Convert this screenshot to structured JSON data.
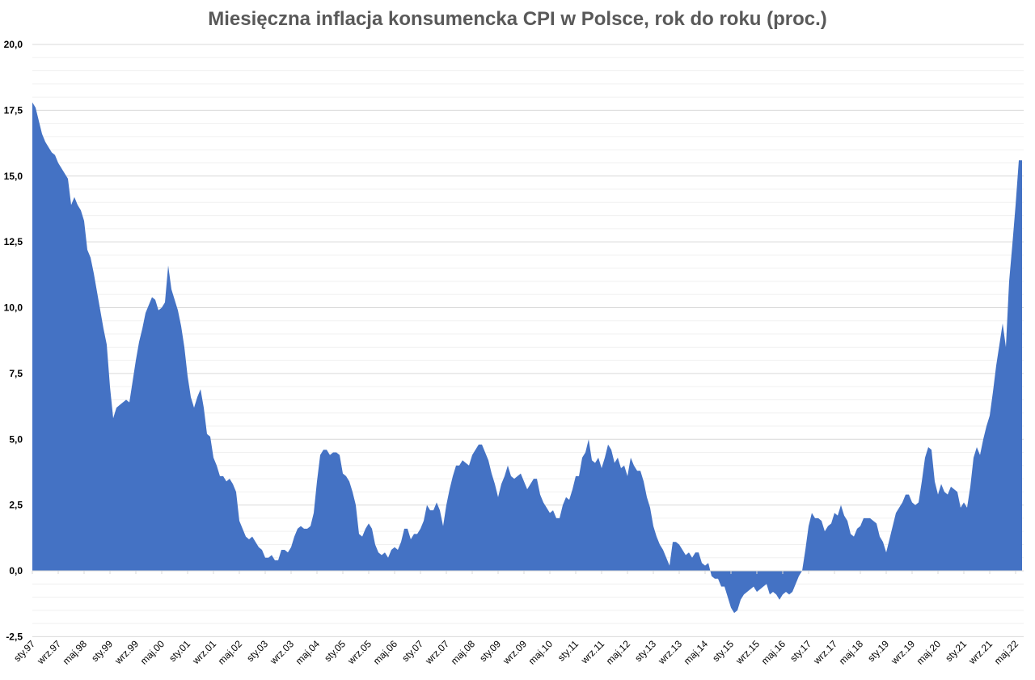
{
  "chart_data": {
    "type": "area",
    "title": "Miesięczna inflacja konsumencka CPI w Polsce, rok do roku (proc.)",
    "xlabel": "",
    "ylabel": "",
    "start": "1997-01",
    "frequency": "monthly",
    "ylim": [
      -2.5,
      20
    ],
    "y_ticks": [
      "20,0",
      "17,5",
      "15,0",
      "12,5",
      "10,0",
      "7,5",
      "5,0",
      "2,5",
      "0,0",
      "-2,5"
    ],
    "y_tick_values": [
      20,
      17.5,
      15,
      12.5,
      10,
      7.5,
      5,
      2.5,
      0,
      -2.5
    ],
    "x_tick_labels": [
      "sty.97",
      "wrz.97",
      "maj.98",
      "sty.99",
      "wrz.99",
      "maj.00",
      "sty.01",
      "wrz.01",
      "maj.02",
      "sty.03",
      "wrz.03",
      "maj.04",
      "sty.05",
      "wrz.05",
      "maj.06",
      "sty.07",
      "wrz.07",
      "maj.08",
      "sty.09",
      "wrz.09",
      "maj.10",
      "sty.11",
      "wrz.11",
      "maj.12",
      "sty.13",
      "wrz.13",
      "maj.14",
      "sty.15",
      "wrz.15",
      "maj.16",
      "sty.17",
      "wrz.17",
      "maj.18",
      "sty.19",
      "wrz.19",
      "maj.20",
      "sty.21",
      "wrz.21",
      "maj.22"
    ],
    "grid": true,
    "legend": "none",
    "color": "#4472C4",
    "values": [
      17.8,
      17.6,
      17.1,
      16.6,
      16.3,
      16.1,
      15.9,
      15.8,
      15.5,
      15.3,
      15.1,
      14.9,
      13.9,
      14.2,
      13.9,
      13.7,
      13.3,
      12.2,
      11.9,
      11.3,
      10.6,
      9.9,
      9.2,
      8.6,
      7.0,
      5.8,
      6.2,
      6.3,
      6.4,
      6.5,
      6.4,
      7.2,
      8.0,
      8.7,
      9.2,
      9.8,
      10.1,
      10.4,
      10.3,
      9.9,
      10.0,
      10.2,
      11.6,
      10.7,
      10.3,
      9.9,
      9.3,
      8.5,
      7.4,
      6.6,
      6.2,
      6.6,
      6.9,
      6.2,
      5.2,
      5.1,
      4.3,
      4.0,
      3.6,
      3.6,
      3.4,
      3.5,
      3.3,
      3.0,
      1.9,
      1.6,
      1.3,
      1.2,
      1.3,
      1.1,
      0.9,
      0.8,
      0.5,
      0.5,
      0.6,
      0.4,
      0.4,
      0.8,
      0.8,
      0.7,
      0.9,
      1.3,
      1.6,
      1.7,
      1.6,
      1.6,
      1.7,
      2.2,
      3.4,
      4.4,
      4.6,
      4.6,
      4.4,
      4.5,
      4.5,
      4.4,
      3.7,
      3.6,
      3.4,
      3.0,
      2.5,
      1.4,
      1.3,
      1.6,
      1.8,
      1.6,
      1.0,
      0.7,
      0.6,
      0.7,
      0.5,
      0.8,
      0.9,
      0.8,
      1.1,
      1.6,
      1.6,
      1.2,
      1.4,
      1.4,
      1.6,
      1.9,
      2.5,
      2.3,
      2.3,
      2.6,
      2.3,
      1.7,
      2.5,
      3.1,
      3.6,
      4.0,
      4.0,
      4.2,
      4.1,
      4.0,
      4.4,
      4.6,
      4.8,
      4.8,
      4.5,
      4.2,
      3.7,
      3.3,
      2.8,
      3.3,
      3.6,
      4.0,
      3.6,
      3.5,
      3.6,
      3.7,
      3.4,
      3.1,
      3.3,
      3.5,
      3.5,
      2.9,
      2.6,
      2.4,
      2.2,
      2.3,
      2.0,
      2.0,
      2.5,
      2.8,
      2.7,
      3.1,
      3.6,
      3.6,
      4.3,
      4.5,
      5.0,
      4.2,
      4.1,
      4.3,
      3.9,
      4.3,
      4.8,
      4.6,
      4.1,
      4.3,
      3.9,
      4.0,
      3.6,
      4.3,
      4.0,
      3.8,
      3.8,
      3.4,
      2.8,
      2.4,
      1.7,
      1.3,
      1.0,
      0.8,
      0.5,
      0.2,
      1.1,
      1.1,
      1.0,
      0.8,
      0.6,
      0.7,
      0.5,
      0.7,
      0.7,
      0.3,
      0.2,
      0.3,
      -0.2,
      -0.3,
      -0.3,
      -0.6,
      -0.6,
      -1.0,
      -1.4,
      -1.6,
      -1.5,
      -1.1,
      -0.9,
      -0.8,
      -0.7,
      -0.6,
      -0.8,
      -0.7,
      -0.6,
      -0.5,
      -0.9,
      -0.8,
      -0.9,
      -1.1,
      -0.9,
      -0.8,
      -0.9,
      -0.8,
      -0.5,
      -0.2,
      0.0,
      0.8,
      1.7,
      2.2,
      2.0,
      2.0,
      1.9,
      1.5,
      1.7,
      1.8,
      2.2,
      2.1,
      2.5,
      2.1,
      1.9,
      1.4,
      1.3,
      1.6,
      1.7,
      2.0,
      2.0,
      2.0,
      1.9,
      1.8,
      1.3,
      1.1,
      0.7,
      1.2,
      1.7,
      2.2,
      2.4,
      2.6,
      2.9,
      2.9,
      2.6,
      2.5,
      2.6,
      3.4,
      4.3,
      4.7,
      4.6,
      3.4,
      2.9,
      3.3,
      3.0,
      2.9,
      3.2,
      3.1,
      3.0,
      2.4,
      2.6,
      2.4,
      3.2,
      4.3,
      4.7,
      4.4,
      5.0,
      5.5,
      5.9,
      6.8,
      7.8,
      8.6,
      9.4,
      8.5,
      11.0,
      12.4,
      13.9,
      15.6,
      15.6
    ]
  }
}
